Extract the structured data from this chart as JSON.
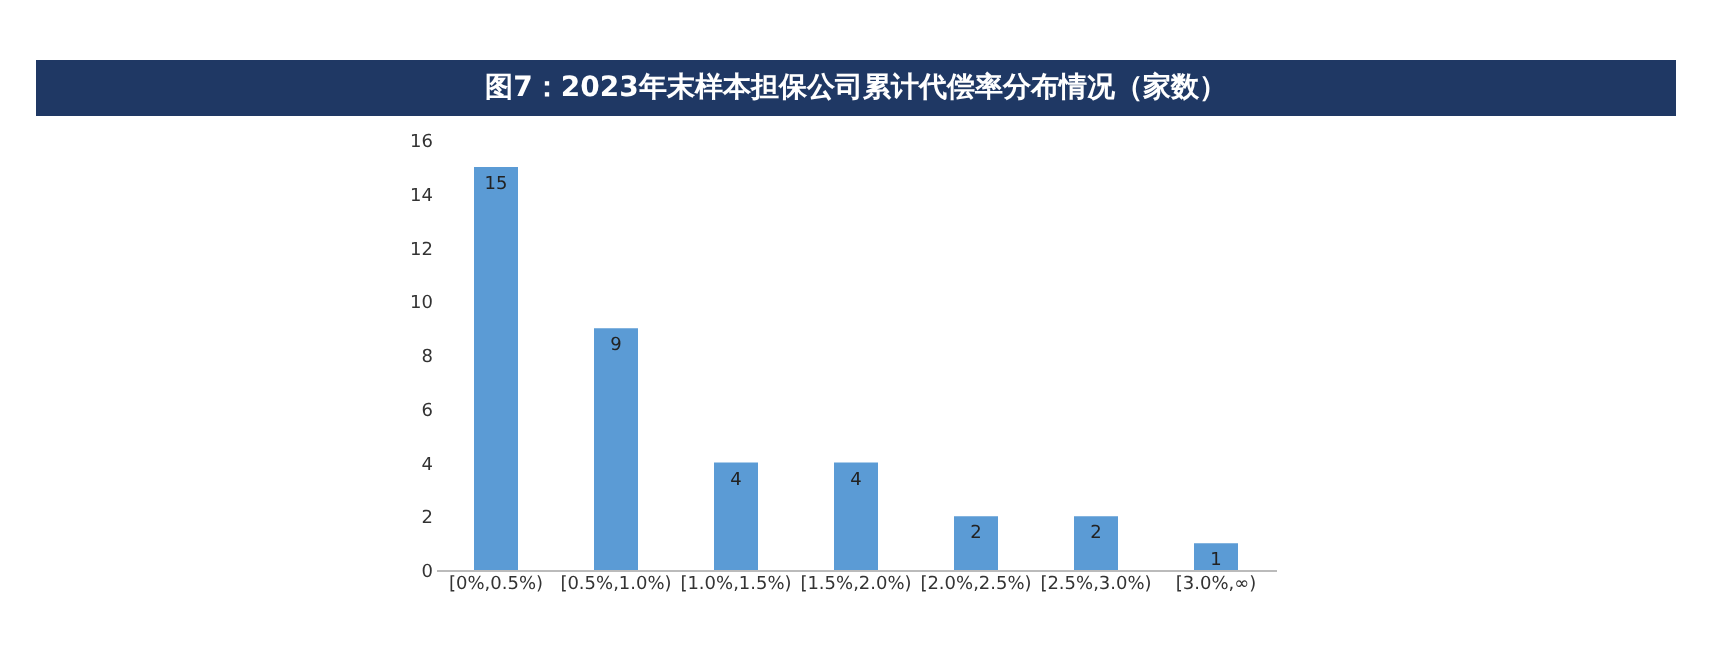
{
  "chart_data": {
    "type": "bar",
    "title": "图7：2023年末样本担保公司累计代偿率分布情况（家数）",
    "categories": [
      "[0%,0.5%)",
      "[0.5%,1.0%)",
      "[1.0%,1.5%)",
      "[1.5%,2.0%)",
      "[2.0%,2.5%)",
      "[2.5%,3.0%)",
      "[3.0%,∞)"
    ],
    "values": [
      15,
      9,
      4,
      4,
      2,
      2,
      1
    ],
    "color": "#5b9bd5",
    "ylim": [
      0,
      16
    ],
    "yticks": [
      0,
      2,
      4,
      6,
      8,
      10,
      12,
      14,
      16
    ],
    "data_labels": true,
    "grid": false
  }
}
